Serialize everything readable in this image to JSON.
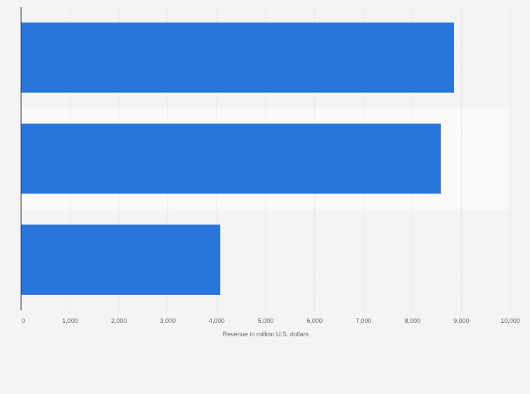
{
  "chart_data": {
    "type": "bar",
    "orientation": "horizontal",
    "categories": [
      "",
      "",
      ""
    ],
    "values": [
      8850,
      8580,
      4070
    ],
    "title": "",
    "xlabel": "Revenue in million U.S. dollars",
    "ylabel": "",
    "xlim": [
      0,
      10000
    ],
    "x_ticks": [
      0,
      1000,
      2000,
      3000,
      4000,
      5000,
      6000,
      7000,
      8000,
      9000,
      10000
    ],
    "x_tick_labels": [
      "0",
      "1,000",
      "2,000",
      "3,000",
      "4,000",
      "5,000",
      "6,000",
      "7,000",
      "8,000",
      "9,000",
      "10,000"
    ],
    "grid": true,
    "legend": "none"
  },
  "colors": {
    "bar": "#2876dd",
    "background": "#f4f4f4",
    "band_alt": "#fafafa",
    "grid": "#dddddd",
    "axis": "#333333",
    "text": "#666666"
  }
}
